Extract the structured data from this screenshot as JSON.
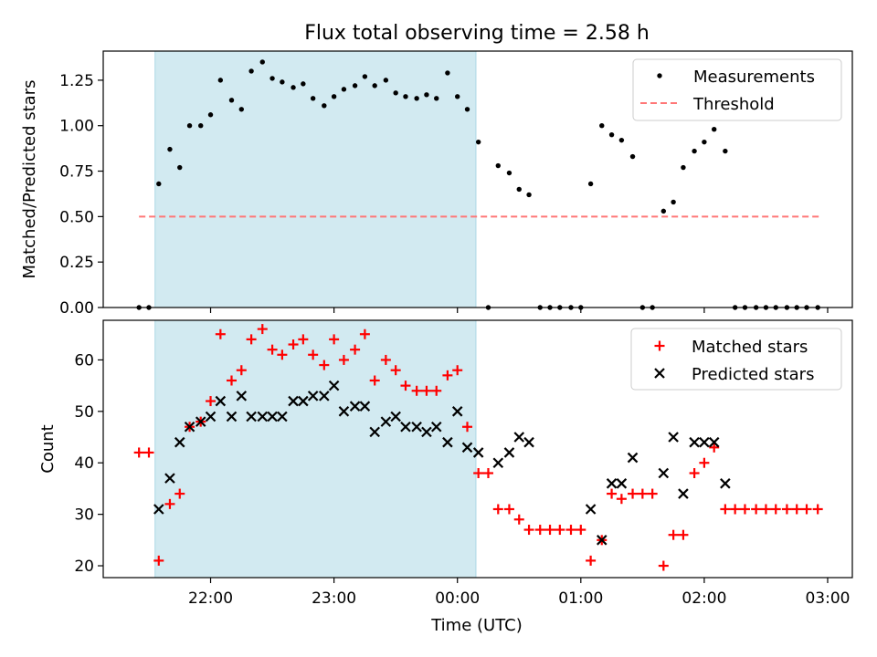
{
  "title": "Flux total observing time = 2.58 h",
  "xlabel": "Time (UTC)",
  "x_ticks": [
    "22:00",
    "23:00",
    "00:00",
    "01:00",
    "02:00",
    "03:00"
  ],
  "x_tick_hours": [
    22,
    23,
    24,
    25,
    26,
    27
  ],
  "xlim_hours": [
    21.13,
    27.2
  ],
  "shaded_span_hours": [
    21.55,
    24.15
  ],
  "colors": {
    "shade": "#add8e6",
    "threshold": "#ff7777",
    "matched": "#ff0000",
    "predicted": "#000000",
    "measurement": "#000000"
  },
  "top": {
    "ylabel": "Matched/Predicted stars",
    "ylim": [
      0,
      1.41
    ],
    "y_ticks": [
      "0.00",
      "0.25",
      "0.50",
      "0.75",
      "1.00",
      "1.25"
    ],
    "y_tick_values": [
      0,
      0.25,
      0.5,
      0.75,
      1.0,
      1.25
    ],
    "legend": {
      "measurements": "Measurements",
      "threshold": "Threshold"
    }
  },
  "bottom": {
    "ylabel": "Count",
    "ylim": [
      17.7,
      67.7
    ],
    "y_ticks": [
      "20",
      "30",
      "40",
      "50",
      "60"
    ],
    "y_tick_values": [
      20,
      30,
      40,
      50,
      60
    ],
    "legend": {
      "matched": "Matched stars",
      "predicted": "Predicted stars"
    }
  },
  "chart_data": [
    {
      "type": "scatter",
      "title": "Flux total observing time = 2.58 h",
      "xlabel": "",
      "ylabel": "Matched/Predicted stars",
      "ylim": [
        0,
        1.41
      ],
      "grid": false,
      "legend_position": "top-right",
      "threshold": {
        "name": "Threshold",
        "y": 0.5,
        "x_range": [
          21.42,
          26.93
        ]
      },
      "series": [
        {
          "name": "Measurements",
          "x": [
            21.42,
            21.5,
            21.58,
            21.67,
            21.75,
            21.83,
            21.92,
            22.0,
            22.08,
            22.17,
            22.25,
            22.33,
            22.42,
            22.5,
            22.58,
            22.67,
            22.75,
            22.83,
            22.92,
            23.0,
            23.08,
            23.17,
            23.25,
            23.33,
            23.42,
            23.5,
            23.58,
            23.67,
            23.75,
            23.83,
            23.92,
            24.0,
            24.08,
            24.17,
            24.25,
            24.33,
            24.42,
            24.5,
            24.58,
            24.67,
            24.75,
            24.83,
            24.92,
            25.0,
            25.08,
            25.17,
            25.25,
            25.33,
            25.42,
            25.5,
            25.58,
            25.67,
            25.75,
            25.83,
            25.92,
            26.0,
            26.08,
            26.17,
            26.25,
            26.33,
            26.42,
            26.5,
            26.58,
            26.67,
            26.75,
            26.83,
            26.92
          ],
          "y": [
            0.0,
            0.0,
            0.68,
            0.87,
            0.77,
            1.0,
            1.0,
            1.06,
            1.25,
            1.14,
            1.09,
            1.3,
            1.35,
            1.26,
            1.24,
            1.21,
            1.23,
            1.15,
            1.11,
            1.16,
            1.2,
            1.22,
            1.27,
            1.22,
            1.25,
            1.18,
            1.16,
            1.15,
            1.17,
            1.15,
            1.29,
            1.16,
            1.09,
            0.91,
            0.0,
            0.78,
            0.74,
            0.65,
            0.62,
            0.0,
            0.0,
            0.0,
            0.0,
            0.0,
            0.68,
            1.0,
            0.95,
            0.92,
            0.83,
            0.0,
            0.0,
            0.53,
            0.58,
            0.77,
            0.86,
            0.91,
            0.98,
            0.86,
            0.0,
            0.0,
            0.0,
            0.0,
            0.0,
            0.0,
            0.0,
            0.0,
            0.0
          ]
        }
      ]
    },
    {
      "type": "scatter",
      "title": "",
      "xlabel": "Time (UTC)",
      "ylabel": "Count",
      "ylim": [
        17.7,
        67.7
      ],
      "grid": false,
      "legend_position": "top-right",
      "series": [
        {
          "name": "Matched stars",
          "marker": "+",
          "x": [
            21.42,
            21.5,
            21.58,
            21.67,
            21.75,
            21.83,
            21.92,
            22.0,
            22.08,
            22.17,
            22.25,
            22.33,
            22.42,
            22.5,
            22.58,
            22.67,
            22.75,
            22.83,
            22.92,
            23.0,
            23.08,
            23.17,
            23.25,
            23.33,
            23.42,
            23.5,
            23.58,
            23.67,
            23.75,
            23.83,
            23.92,
            24.0,
            24.08,
            24.17,
            24.25,
            24.33,
            24.42,
            24.5,
            24.58,
            24.67,
            24.75,
            24.83,
            24.92,
            25.0,
            25.08,
            25.17,
            25.25,
            25.33,
            25.42,
            25.5,
            25.58,
            25.67,
            25.75,
            25.83,
            25.92,
            26.0,
            26.08,
            26.17,
            26.25,
            26.33,
            26.42,
            26.5,
            26.58,
            26.67,
            26.75,
            26.83,
            26.92
          ],
          "y": [
            42,
            42,
            21,
            32,
            34,
            47,
            48,
            52,
            65,
            56,
            58,
            64,
            66,
            62,
            61,
            63,
            64,
            61,
            59,
            64,
            60,
            62,
            65,
            56,
            60,
            58,
            55,
            54,
            54,
            54,
            57,
            58,
            47,
            38,
            38,
            31,
            31,
            29,
            27,
            27,
            27,
            27,
            27,
            27,
            21,
            25,
            34,
            33,
            34,
            34,
            34,
            20,
            26,
            26,
            38,
            40,
            43,
            31,
            31,
            31,
            31,
            31,
            31,
            31,
            31,
            31,
            31
          ]
        },
        {
          "name": "Predicted stars",
          "marker": "x",
          "x": [
            21.58,
            21.67,
            21.75,
            21.83,
            21.92,
            22.0,
            22.08,
            22.17,
            22.25,
            22.33,
            22.42,
            22.5,
            22.58,
            22.67,
            22.75,
            22.83,
            22.92,
            23.0,
            23.08,
            23.17,
            23.25,
            23.33,
            23.42,
            23.5,
            23.58,
            23.67,
            23.75,
            23.83,
            23.92,
            24.0,
            24.08,
            24.17,
            24.33,
            24.42,
            24.5,
            24.58,
            25.08,
            25.17,
            25.25,
            25.33,
            25.42,
            25.67,
            25.75,
            25.83,
            25.92,
            26.0,
            26.08,
            26.17
          ],
          "y": [
            31,
            37,
            44,
            47,
            48,
            49,
            52,
            49,
            53,
            49,
            49,
            49,
            49,
            52,
            52,
            53,
            53,
            55,
            50,
            51,
            51,
            46,
            48,
            49,
            47,
            47,
            46,
            47,
            44,
            50,
            43,
            42,
            40,
            42,
            45,
            44,
            31,
            25,
            36,
            36,
            41,
            38,
            45,
            34,
            44,
            44,
            44,
            36
          ]
        }
      ]
    }
  ]
}
